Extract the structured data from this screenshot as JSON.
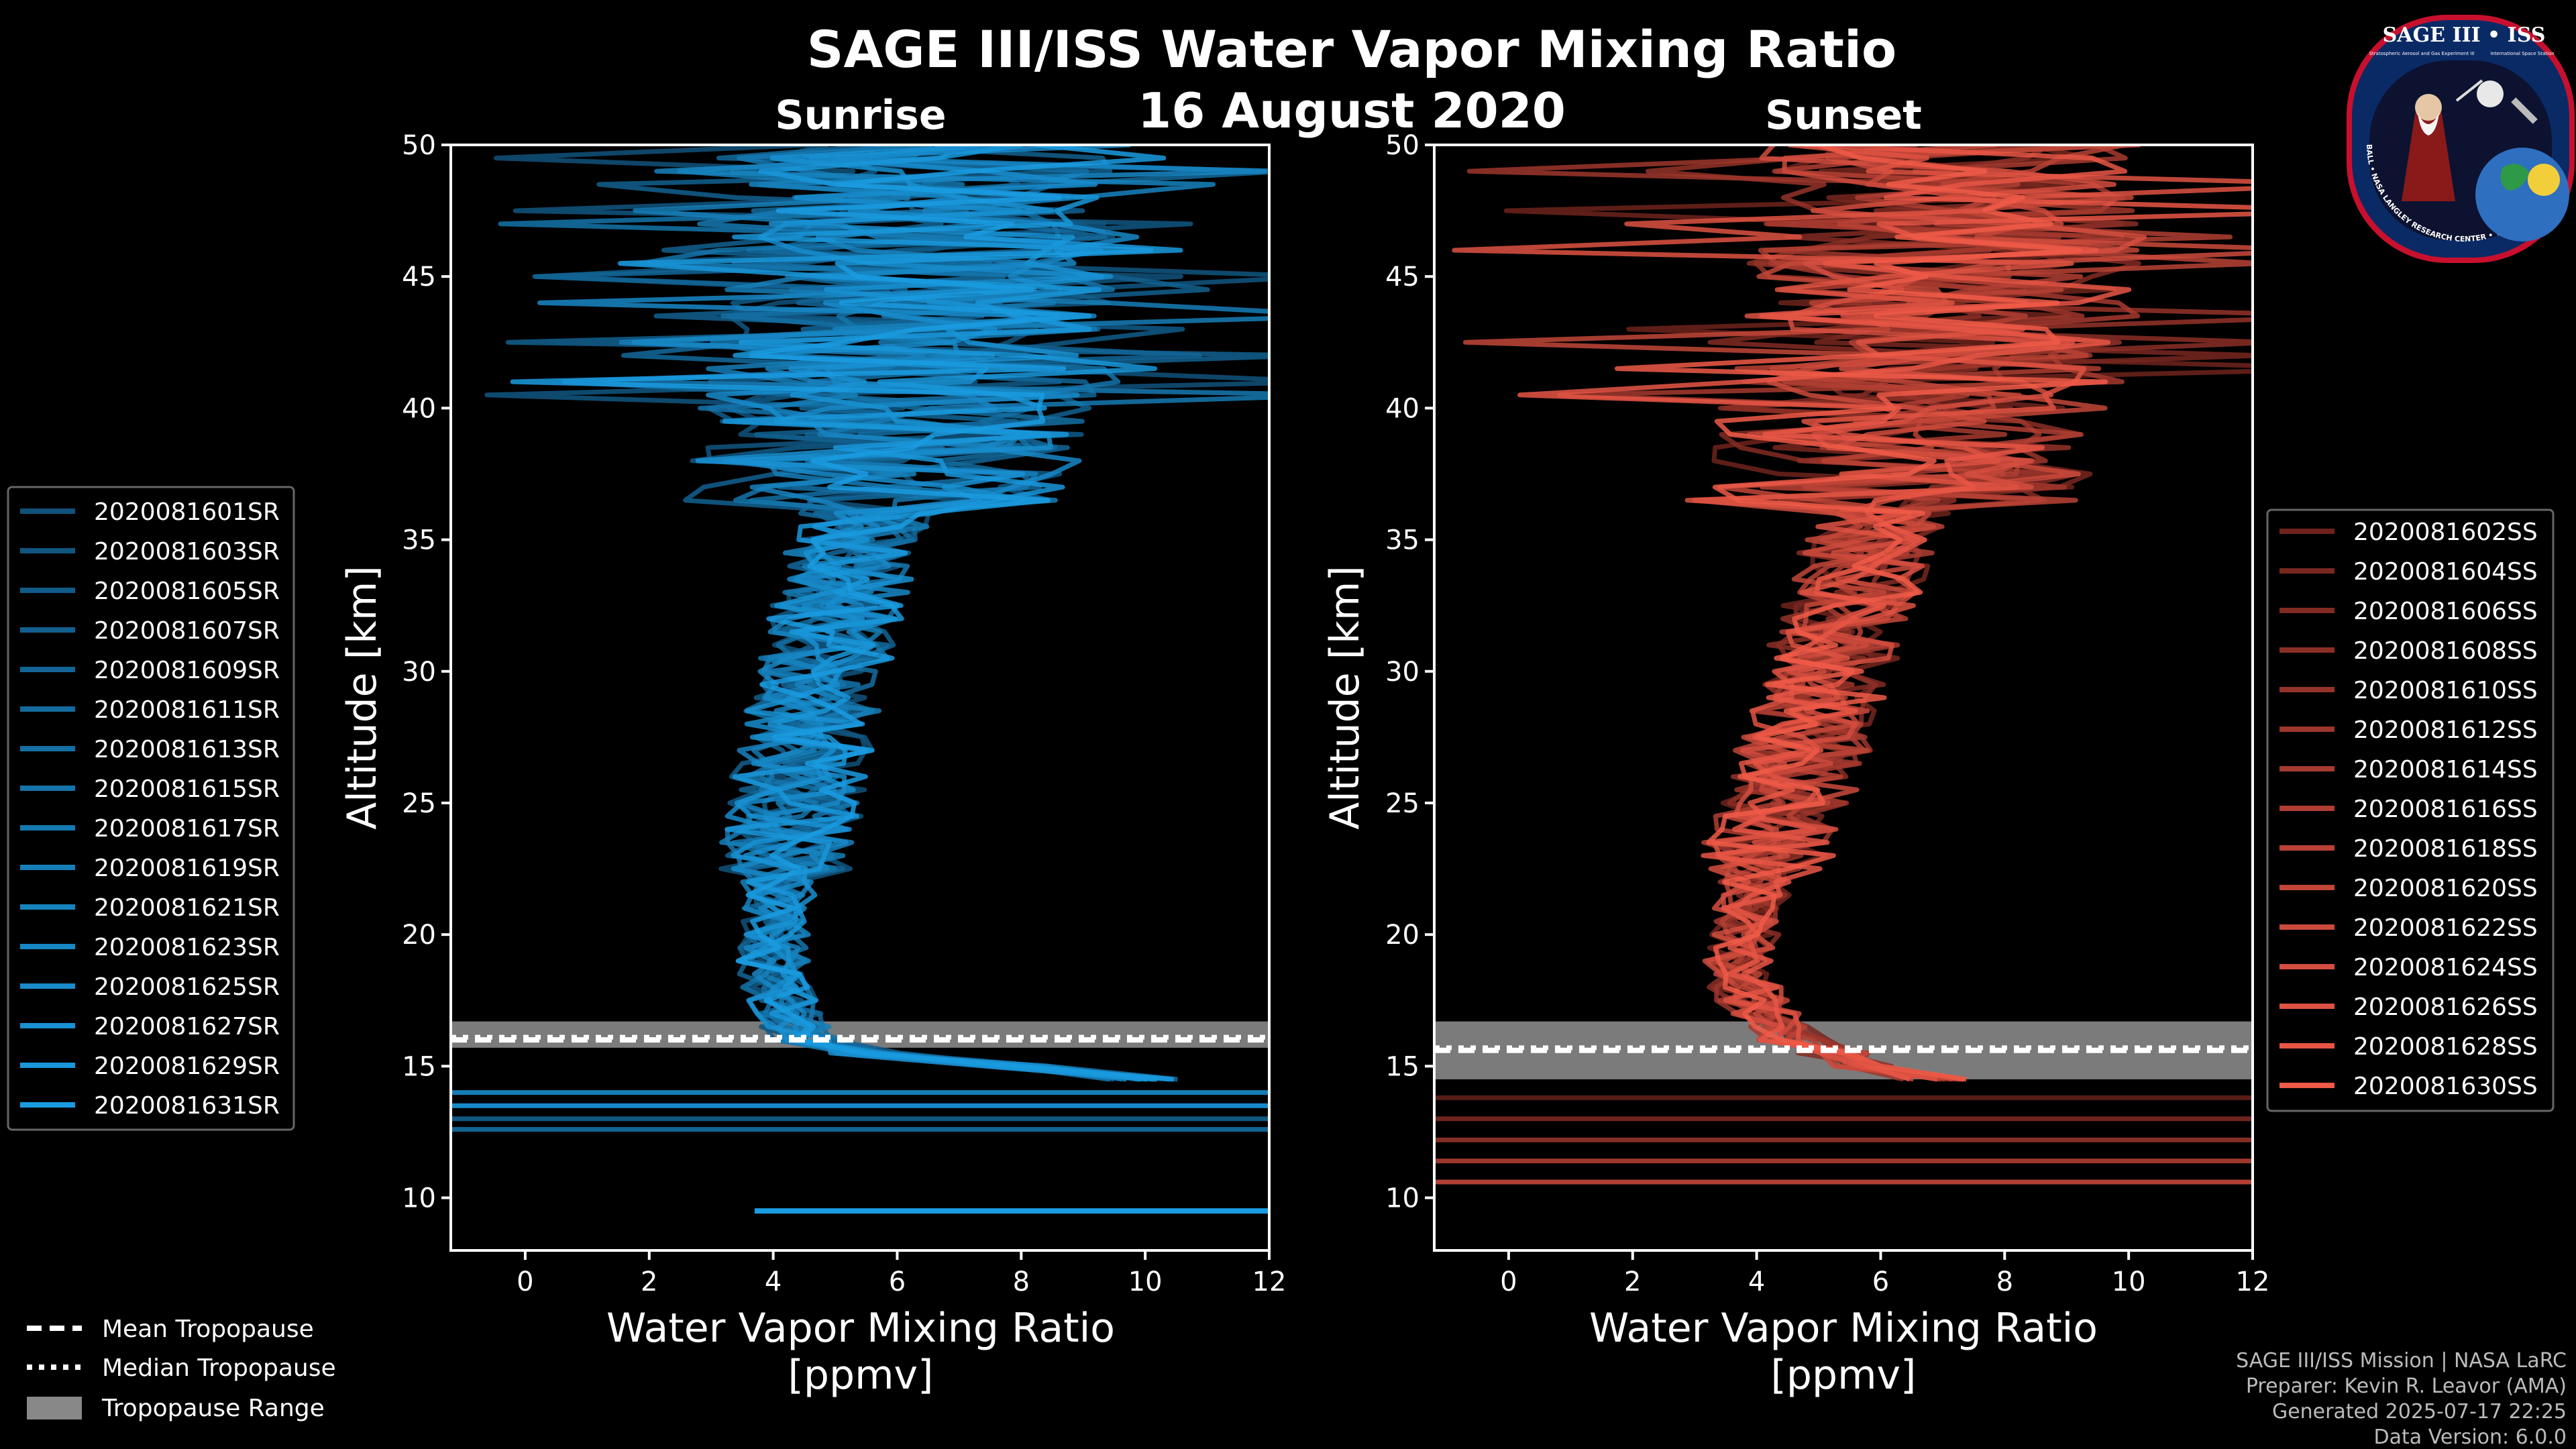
{
  "title": "SAGE III/ISS Water Vapor Mixing Ratio",
  "date": "16 August 2020",
  "logo": {
    "name": "SAGE III • ISS",
    "subtitle_left": "Stratospheric Aerosol and Gas Experiment III",
    "subtitle_right": "International Space Station",
    "ring_text": "BALL • NASA LANGLEY RESEARCH CENTER • TAS-I • ESA"
  },
  "credits": [
    "SAGE III/ISS Mission | NASA LaRC",
    "Preparer: Kevin R. Leavor (AMA)",
    "Generated 2025-07-17 22:25",
    "Data Version: 6.0.0"
  ],
  "tropopause_legend": [
    {
      "label": "Mean Tropopause",
      "style": "dashed"
    },
    {
      "label": "Median Tropopause",
      "style": "dotted"
    },
    {
      "label": "Tropopause Range",
      "style": "band"
    }
  ],
  "colors": {
    "sunrise": "#1a9be0",
    "sunset": "#f05a48",
    "band": "#888888",
    "axis": "#ffffff"
  },
  "chart_data": [
    {
      "type": "line",
      "panel": "Sunrise",
      "title": "Sunrise",
      "xlabel": "Water Vapor Mixing Ratio",
      "xunit": "[ppmv]",
      "ylabel": "Altitude [km]",
      "xlim": [
        -1.2,
        12
      ],
      "ylim": [
        8,
        50
      ],
      "xticks": [
        0,
        2,
        4,
        6,
        8,
        10,
        12
      ],
      "yticks": [
        10,
        15,
        20,
        25,
        30,
        35,
        40,
        45,
        50
      ],
      "grid": false,
      "legend_position": "left",
      "tropopause": {
        "mean_km": 16.0,
        "median_km": 16.1,
        "range_km": [
          15.7,
          16.7
        ]
      },
      "median_profile": {
        "altitude_km": [
          14,
          15,
          15.5,
          16,
          17,
          18,
          19,
          20,
          22,
          24,
          26,
          28,
          30,
          32,
          34,
          36,
          38,
          40,
          42,
          45,
          48,
          50
        ],
        "h2o_ppmv": [
          12,
          8,
          5.5,
          4.6,
          4.2,
          4.1,
          4.0,
          4.0,
          4.1,
          4.3,
          4.4,
          4.6,
          4.8,
          5.0,
          5.2,
          5.5,
          5.8,
          6.0,
          6.2,
          6.3,
          6.3,
          6.3
        ]
      },
      "series": [
        {
          "name": "2020081601SR"
        },
        {
          "name": "2020081603SR"
        },
        {
          "name": "2020081605SR"
        },
        {
          "name": "2020081607SR"
        },
        {
          "name": "2020081609SR"
        },
        {
          "name": "2020081611SR"
        },
        {
          "name": "2020081613SR"
        },
        {
          "name": "2020081615SR"
        },
        {
          "name": "2020081617SR"
        },
        {
          "name": "2020081619SR"
        },
        {
          "name": "2020081621SR"
        },
        {
          "name": "2020081623SR"
        },
        {
          "name": "2020081625SR"
        },
        {
          "name": "2020081627SR"
        },
        {
          "name": "2020081629SR"
        },
        {
          "name": "2020081631SR"
        }
      ]
    },
    {
      "type": "line",
      "panel": "Sunset",
      "title": "Sunset",
      "xlabel": "Water Vapor Mixing Ratio",
      "xunit": "[ppmv]",
      "ylabel": "Altitude [km]",
      "xlim": [
        -1.2,
        12
      ],
      "ylim": [
        8,
        50
      ],
      "xticks": [
        0,
        2,
        4,
        6,
        8,
        10,
        12
      ],
      "yticks": [
        10,
        15,
        20,
        25,
        30,
        35,
        40,
        45,
        50
      ],
      "grid": false,
      "legend_position": "right",
      "tropopause": {
        "mean_km": 15.6,
        "median_km": 15.7,
        "range_km": [
          14.5,
          16.7
        ]
      },
      "median_profile": {
        "altitude_km": [
          12,
          13,
          14,
          15,
          16,
          17,
          18,
          19,
          20,
          22,
          24,
          26,
          28,
          30,
          32,
          34,
          36,
          38,
          40,
          42,
          45,
          48,
          50
        ],
        "h2o_ppmv": [
          12,
          10,
          8,
          5.8,
          4.6,
          4.1,
          3.8,
          3.7,
          3.8,
          4.0,
          4.3,
          4.6,
          4.9,
          5.1,
          5.4,
          5.7,
          6.0,
          6.3,
          6.6,
          6.8,
          7.0,
          7.2,
          7.2
        ]
      },
      "series": [
        {
          "name": "2020081602SS"
        },
        {
          "name": "2020081604SS"
        },
        {
          "name": "2020081606SS"
        },
        {
          "name": "2020081608SS"
        },
        {
          "name": "2020081610SS"
        },
        {
          "name": "2020081612SS"
        },
        {
          "name": "2020081614SS"
        },
        {
          "name": "2020081616SS"
        },
        {
          "name": "2020081618SS"
        },
        {
          "name": "2020081620SS"
        },
        {
          "name": "2020081622SS"
        },
        {
          "name": "2020081624SS"
        },
        {
          "name": "2020081626SS"
        },
        {
          "name": "2020081628SS"
        },
        {
          "name": "2020081630SS"
        }
      ]
    }
  ]
}
